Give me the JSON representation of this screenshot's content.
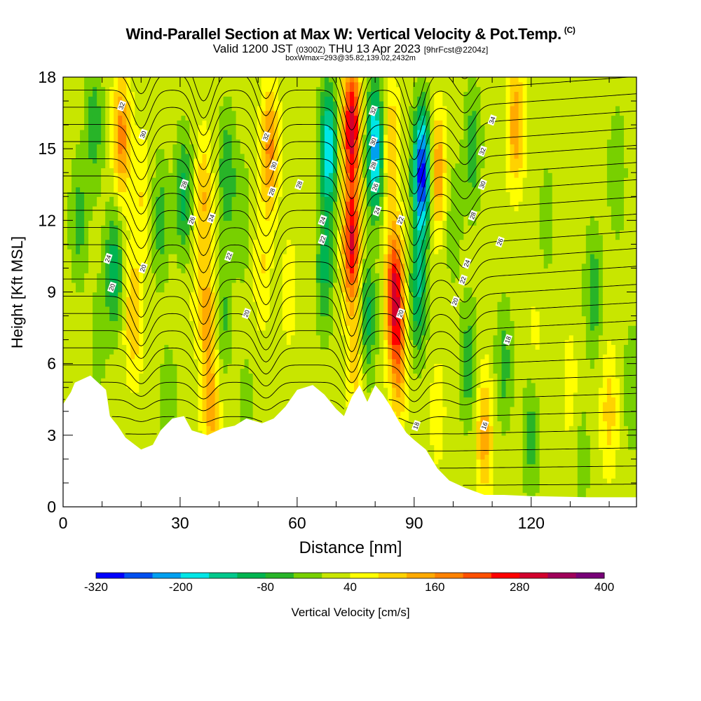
{
  "title": {
    "main": "Wind-Parallel Section at Max W: Vertical Velocity & Pot.Temp.",
    "unit": "(C)",
    "valid_prefix": "Valid 1200 JST",
    "valid_zulu": "(0300Z)",
    "valid_date": "THU 13 Apr 2023",
    "forecast": "[9hrFcst@2204z]",
    "subtitle": "boxWmax=293@35.82,139.02,2432m"
  },
  "chart_data": {
    "type": "heatmap",
    "xlabel": "Distance [nm]",
    "ylabel": "Height [Kft MSL]",
    "xlim": [
      0,
      147
    ],
    "ylim": [
      0,
      18
    ],
    "x_ticks": [
      0,
      30,
      60,
      90,
      120
    ],
    "y_ticks": [
      0,
      3,
      6,
      9,
      12,
      15,
      18
    ],
    "colorbar": {
      "label": "Vertical Velocity [cm/s]",
      "tick_labels": [
        "-320",
        "-200",
        "-80",
        "40",
        "160",
        "280",
        "400"
      ],
      "tick_values": [
        -320,
        -200,
        -80,
        40,
        160,
        280,
        400
      ],
      "levels": [
        -320,
        -280,
        -240,
        -200,
        -160,
        -120,
        -80,
        -40,
        0,
        40,
        80,
        120,
        160,
        200,
        240,
        280,
        320,
        360,
        400
      ],
      "colors": [
        "#0000ff",
        "#0050f0",
        "#00a0f0",
        "#00e6e6",
        "#00c88c",
        "#00b450",
        "#28b428",
        "#78d000",
        "#c8e600",
        "#ffff00",
        "#ffd200",
        "#ffaa00",
        "#ff8200",
        "#ff5000",
        "#ff0000",
        "#d2002d",
        "#a0005a",
        "#780078"
      ]
    },
    "terrain_top_kft": [
      [
        0,
        4.3
      ],
      [
        2,
        4.8
      ],
      [
        3,
        5.2
      ],
      [
        7,
        5.5
      ],
      [
        11,
        4.9
      ],
      [
        12,
        3.8
      ],
      [
        14,
        3.4
      ],
      [
        16,
        2.9
      ],
      [
        20,
        2.4
      ],
      [
        23,
        2.6
      ],
      [
        25,
        3.2
      ],
      [
        28,
        3.7
      ],
      [
        31,
        3.8
      ],
      [
        33,
        3.2
      ],
      [
        37,
        3.0
      ],
      [
        41,
        3.3
      ],
      [
        44,
        3.4
      ],
      [
        47,
        3.7
      ],
      [
        51,
        3.5
      ],
      [
        54,
        3.7
      ],
      [
        57,
        4.2
      ],
      [
        60,
        4.9
      ],
      [
        64,
        5.1
      ],
      [
        67,
        4.7
      ],
      [
        70,
        4.1
      ],
      [
        72,
        3.8
      ],
      [
        74,
        4.6
      ],
      [
        76,
        5.1
      ],
      [
        78,
        4.4
      ],
      [
        80,
        5.1
      ],
      [
        82,
        4.7
      ],
      [
        84,
        4.2
      ],
      [
        86,
        3.6
      ],
      [
        88,
        3.1
      ],
      [
        90,
        2.8
      ],
      [
        93,
        2.4
      ],
      [
        96,
        1.6
      ],
      [
        99,
        1.1
      ],
      [
        103,
        0.8
      ],
      [
        108,
        0.5
      ],
      [
        113,
        0.5
      ],
      [
        120,
        0.45
      ],
      [
        135,
        0.4
      ],
      [
        147,
        0.4
      ]
    ],
    "velocity_field": {
      "background_cm_s": 20,
      "cells": [
        {
          "x": 4,
          "z": 12,
          "w": -80
        },
        {
          "x": 8,
          "z": 16,
          "w": -90
        },
        {
          "x": 9,
          "z": 7,
          "w": -40
        },
        {
          "x": 13,
          "z": 10,
          "w": -130
        },
        {
          "x": 15,
          "z": 15.5,
          "w": 160
        },
        {
          "x": 18,
          "z": 8,
          "w": 100
        },
        {
          "x": 20,
          "z": 13,
          "w": 60
        },
        {
          "x": 25,
          "z": 12,
          "w": -80
        },
        {
          "x": 27,
          "z": 4,
          "w": -60
        },
        {
          "x": 31,
          "z": 13,
          "w": -120
        },
        {
          "x": 33,
          "z": 9,
          "w": 20
        },
        {
          "x": 36,
          "z": 13,
          "w": 100
        },
        {
          "x": 37,
          "z": 8,
          "w": 120
        },
        {
          "x": 38,
          "z": 4,
          "w": 110
        },
        {
          "x": 42,
          "z": 14,
          "w": -100
        },
        {
          "x": 41,
          "z": 8,
          "w": -70
        },
        {
          "x": 46,
          "z": 12,
          "w": -50
        },
        {
          "x": 47,
          "z": 4,
          "w": -40
        },
        {
          "x": 53,
          "z": 15,
          "w": 150
        },
        {
          "x": 51,
          "z": 10,
          "w": 60
        },
        {
          "x": 58,
          "z": 9,
          "w": 40
        },
        {
          "x": 63,
          "z": 12,
          "w": 20
        },
        {
          "x": 68,
          "z": 15,
          "w": -220
        },
        {
          "x": 67,
          "z": 10,
          "w": -110
        },
        {
          "x": 74,
          "z": 16,
          "w": 290
        },
        {
          "x": 74,
          "z": 11,
          "w": 260
        },
        {
          "x": 75,
          "z": 6,
          "w": 80
        },
        {
          "x": 80,
          "z": 15,
          "w": -250
        },
        {
          "x": 78,
          "z": 8,
          "w": -120
        },
        {
          "x": 84,
          "z": 15,
          "w": 110
        },
        {
          "x": 85,
          "z": 9,
          "w": 270
        },
        {
          "x": 86,
          "z": 6,
          "w": 120
        },
        {
          "x": 92,
          "z": 14,
          "w": -330
        },
        {
          "x": 91,
          "z": 9,
          "w": -140
        },
        {
          "x": 96,
          "z": 14,
          "w": 140
        },
        {
          "x": 96,
          "z": 4,
          "w": 40
        },
        {
          "x": 100,
          "z": 12,
          "w": -50
        },
        {
          "x": 104,
          "z": 6,
          "w": -90
        },
        {
          "x": 105,
          "z": 15,
          "w": -90
        },
        {
          "x": 108,
          "z": 3,
          "w": 120
        },
        {
          "x": 110,
          "z": 11,
          "w": 20
        },
        {
          "x": 113,
          "z": 6,
          "w": -80
        },
        {
          "x": 116,
          "z": 16,
          "w": 130
        },
        {
          "x": 120,
          "z": 3,
          "w": -80
        },
        {
          "x": 121,
          "z": 7,
          "w": 30
        },
        {
          "x": 124,
          "z": 12,
          "w": -40
        },
        {
          "x": 130,
          "z": 5,
          "w": 40
        },
        {
          "x": 133,
          "z": 2,
          "w": -40
        },
        {
          "x": 136,
          "z": 9,
          "w": -90
        },
        {
          "x": 140,
          "z": 4,
          "w": 80
        },
        {
          "x": 142,
          "z": 14,
          "w": -60
        },
        {
          "x": 146,
          "z": 5,
          "w": -60
        }
      ]
    },
    "pot_temp_contours": {
      "contour_interval_c": 2,
      "annotated_levels": [
        16,
        18,
        20,
        22,
        24,
        26,
        28,
        30,
        32,
        34
      ],
      "labels": [
        {
          "text": "32",
          "x": 15,
          "z": 16.8
        },
        {
          "text": "30",
          "x": 20.5,
          "z": 15.6
        },
        {
          "text": "28",
          "x": 31,
          "z": 13.5
        },
        {
          "text": "26",
          "x": 33,
          "z": 12
        },
        {
          "text": "24",
          "x": 38,
          "z": 12.1
        },
        {
          "text": "24",
          "x": 11.5,
          "z": 10.4
        },
        {
          "text": "20",
          "x": 20.5,
          "z": 10
        },
        {
          "text": "22",
          "x": 42.5,
          "z": 10.5
        },
        {
          "text": "20",
          "x": 12.5,
          "z": 9.2
        },
        {
          "text": "20",
          "x": 47,
          "z": 8.1
        },
        {
          "text": "32",
          "x": 52,
          "z": 15.5
        },
        {
          "text": "30",
          "x": 54,
          "z": 14.3
        },
        {
          "text": "28",
          "x": 53.5,
          "z": 13.2
        },
        {
          "text": "28",
          "x": 60.5,
          "z": 13.5
        },
        {
          "text": "24",
          "x": 66.5,
          "z": 12
        },
        {
          "text": "22",
          "x": 66.5,
          "z": 11.2
        },
        {
          "text": "32",
          "x": 79.5,
          "z": 16.6
        },
        {
          "text": "30",
          "x": 79.5,
          "z": 15.3
        },
        {
          "text": "28",
          "x": 79.5,
          "z": 14.3
        },
        {
          "text": "26",
          "x": 80,
          "z": 13.4
        },
        {
          "text": "24",
          "x": 80.5,
          "z": 12.4
        },
        {
          "text": "22",
          "x": 86.5,
          "z": 12
        },
        {
          "text": "20",
          "x": 86.5,
          "z": 8.1
        },
        {
          "text": "34",
          "x": 110,
          "z": 16.2
        },
        {
          "text": "32",
          "x": 107.5,
          "z": 14.9
        },
        {
          "text": "30",
          "x": 107.5,
          "z": 13.5
        },
        {
          "text": "28",
          "x": 105,
          "z": 12.2
        },
        {
          "text": "26",
          "x": 112,
          "z": 11.1
        },
        {
          "text": "24",
          "x": 103.5,
          "z": 10.2
        },
        {
          "text": "22",
          "x": 102.5,
          "z": 9.5
        },
        {
          "text": "20",
          "x": 100.5,
          "z": 8.6
        },
        {
          "text": "18",
          "x": 114,
          "z": 7
        },
        {
          "text": "18",
          "x": 90.5,
          "z": 3.4
        },
        {
          "text": "16",
          "x": 108,
          "z": 3.4
        }
      ]
    }
  }
}
